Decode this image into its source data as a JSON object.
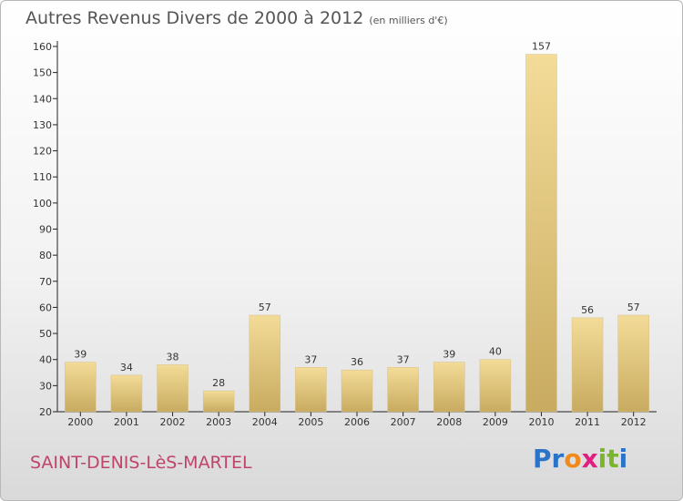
{
  "header": {
    "title": "Autres Revenus Divers de 2000 à 2012",
    "subtitle": "(en milliers d'€)"
  },
  "footer": {
    "commune": "SAINT-DENIS-LèS-MARTEL",
    "brand_letters": [
      "P",
      "r",
      "o",
      "x",
      "i",
      "t",
      "i"
    ]
  },
  "colors": {
    "bar_light": "#f3dc98",
    "bar_dark": "#c8ab60",
    "commune": "#c0446a",
    "brand_letters": [
      "#2b73c8",
      "#2b73c8",
      "#f08a1c",
      "#e02080",
      "#7ab62a",
      "#7ab62a",
      "#2b73c8"
    ]
  },
  "chart_data": {
    "type": "bar",
    "categories": [
      "2000",
      "2001",
      "2002",
      "2003",
      "2004",
      "2005",
      "2006",
      "2007",
      "2008",
      "2009",
      "2010",
      "2011",
      "2012"
    ],
    "values": [
      39,
      34,
      38,
      28,
      57,
      37,
      36,
      37,
      39,
      40,
      157,
      56,
      57
    ],
    "ylim": [
      20,
      160
    ],
    "yticks": [
      20,
      30,
      40,
      50,
      60,
      70,
      80,
      90,
      100,
      110,
      120,
      130,
      140,
      150,
      160
    ],
    "grid": false,
    "data_labels": true
  }
}
